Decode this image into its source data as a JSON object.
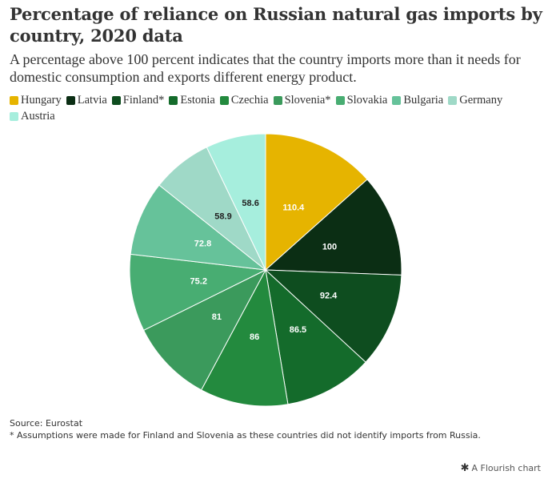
{
  "chart_data": {
    "type": "pie",
    "title": "Percentage of reliance on Russian natural gas imports by country, 2020 data",
    "subtitle": "A percentage above 100 percent indicates that the country imports more than it needs for domestic consumption and exports different energy product.",
    "legend_position": "top",
    "slices": [
      {
        "label": "Hungary",
        "value": 110.4,
        "color": "#e6b400",
        "label_color": "#ffffff"
      },
      {
        "label": "Latvia",
        "value": 100,
        "color": "#0b2e14",
        "label_color": "#ffffff"
      },
      {
        "label": "Finland*",
        "value": 92.4,
        "color": "#0e4d1f",
        "label_color": "#ffffff"
      },
      {
        "label": "Estonia",
        "value": 86.5,
        "color": "#146b2b",
        "label_color": "#ffffff"
      },
      {
        "label": "Czechia",
        "value": 86,
        "color": "#238a3e",
        "label_color": "#ffffff"
      },
      {
        "label": "Slovenia*",
        "value": 81,
        "color": "#3b9a5c",
        "label_color": "#ffffff"
      },
      {
        "label": "Slovakia",
        "value": 75.2,
        "color": "#48ad72",
        "label_color": "#ffffff"
      },
      {
        "label": "Bulgaria",
        "value": 72.8,
        "color": "#66c29a",
        "label_color": "#ffffff"
      },
      {
        "label": "Germany",
        "value": 58.9,
        "color": "#9fd9c7",
        "label_color": "#222222"
      },
      {
        "label": "Austria",
        "value": 58.6,
        "color": "#a6eedd",
        "label_color": "#222222"
      }
    ]
  },
  "footer": {
    "source": "Source: Eurostat",
    "note": "* Assumptions were made for Finland and Slovenia as these countries did not identify imports from Russia."
  },
  "branding": {
    "label": "A Flourish chart"
  }
}
